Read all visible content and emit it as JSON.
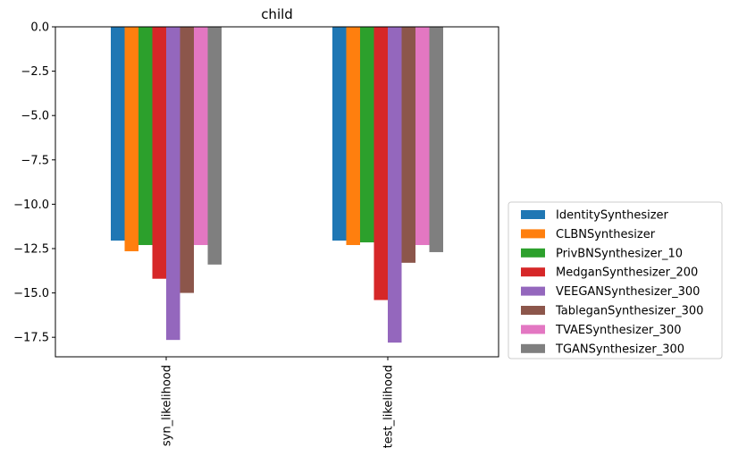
{
  "chart_data": {
    "type": "bar",
    "title": "child",
    "xlabel": "",
    "ylabel": "",
    "categories": [
      "syn_likelihood",
      "test_likelihood"
    ],
    "ylim": [
      -18.6,
      0.0
    ],
    "yticks": [
      0.0,
      -2.5,
      -5.0,
      -7.5,
      -10.0,
      -12.5,
      -15.0,
      -17.5
    ],
    "ytick_labels": [
      "0.0",
      "−2.5",
      "−5.0",
      "−7.5",
      "−10.0",
      "−12.5",
      "−15.0",
      "−17.5"
    ],
    "legend_position": "right",
    "grid": false,
    "series": [
      {
        "name": "IdentitySynthesizer",
        "color": "#1f77b4",
        "values": [
          -12.05,
          -12.05
        ]
      },
      {
        "name": "CLBNSynthesizer",
        "color": "#ff7f0e",
        "values": [
          -12.65,
          -12.3
        ]
      },
      {
        "name": "PrivBNSynthesizer_10",
        "color": "#2ca02c",
        "values": [
          -12.3,
          -12.15
        ]
      },
      {
        "name": "MedganSynthesizer_200",
        "color": "#d62728",
        "values": [
          -14.2,
          -15.4
        ]
      },
      {
        "name": "VEEGANSynthesizer_300",
        "color": "#9467bd",
        "values": [
          -17.65,
          -17.8
        ]
      },
      {
        "name": "TableganSynthesizer_300",
        "color": "#8c564b",
        "values": [
          -15.0,
          -13.3
        ]
      },
      {
        "name": "TVAESynthesizer_300",
        "color": "#e377c2",
        "values": [
          -12.3,
          -12.3
        ]
      },
      {
        "name": "TGANSynthesizer_300",
        "color": "#7f7f7f",
        "values": [
          -13.4,
          -12.7
        ]
      }
    ]
  }
}
